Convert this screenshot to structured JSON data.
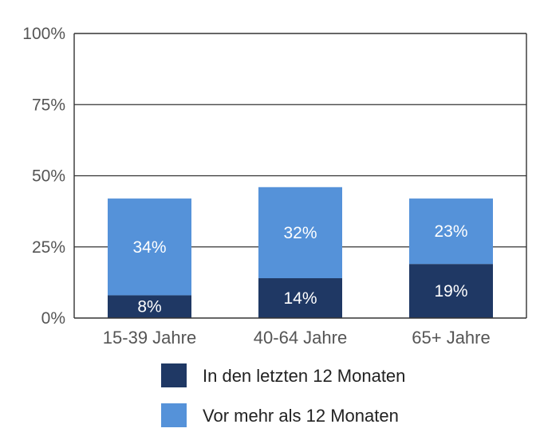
{
  "chart_data": {
    "type": "bar",
    "stacked": true,
    "categories": [
      "15-39 Jahre",
      "40-64 Jahre",
      "65+ Jahre"
    ],
    "series": [
      {
        "name": "In den letzten 12 Monaten",
        "values": [
          8,
          14,
          19
        ],
        "labels": [
          "8%",
          "14%",
          "19%"
        ],
        "color": "#1f3864"
      },
      {
        "name": "Vor mehr als 12 Monaten",
        "values": [
          34,
          32,
          23
        ],
        "labels": [
          "34%",
          "32%",
          "23%"
        ],
        "color": "#5592d9"
      }
    ],
    "ylim": [
      0,
      100
    ],
    "yticks": [
      0,
      25,
      50,
      75,
      100
    ],
    "ytick_labels": [
      "0%",
      "25%",
      "50%",
      "75%",
      "100%"
    ],
    "grid": true,
    "legend": "bottom",
    "title": "",
    "xlabel": "",
    "ylabel": ""
  }
}
